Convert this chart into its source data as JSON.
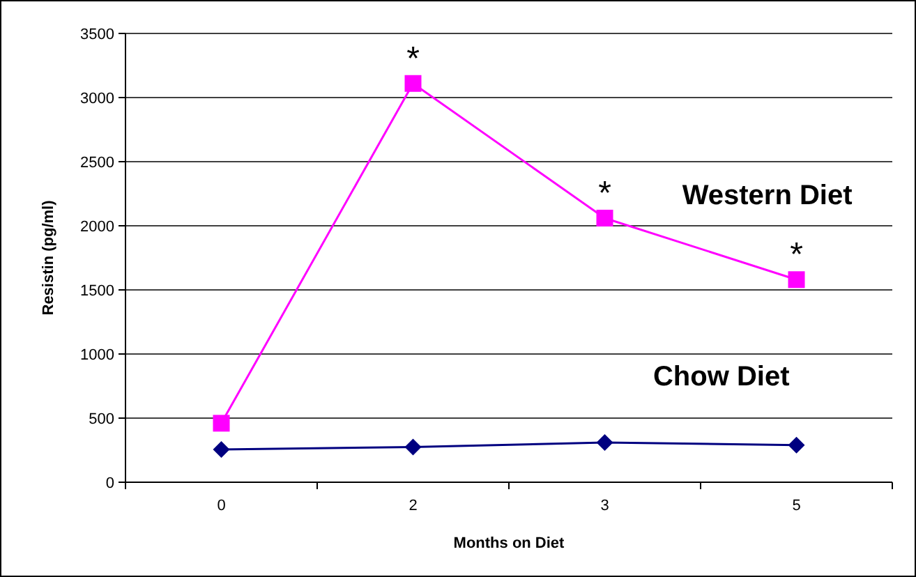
{
  "chart_data": {
    "type": "line",
    "xlabel": "Months on Diet",
    "ylabel": "Resistin (pg/ml)",
    "categories": [
      "0",
      "2",
      "3",
      "5"
    ],
    "series": [
      {
        "name": "Western Diet",
        "color": "#ff00ff",
        "marker": "square",
        "values": [
          460,
          3110,
          2060,
          1580
        ]
      },
      {
        "name": "Chow Diet",
        "color": "#000080",
        "marker": "diamond",
        "values": [
          255,
          275,
          310,
          290
        ]
      }
    ],
    "ylim": [
      0,
      3500
    ],
    "yticks": [
      0,
      500,
      1000,
      1500,
      2000,
      2500,
      3000,
      3500
    ],
    "grid": "y",
    "line_style": "solid",
    "annotations": [
      {
        "text": "*",
        "x": "2",
        "y": 3110
      },
      {
        "text": "*",
        "x": "3",
        "y": 2060
      },
      {
        "text": "*",
        "x": "5",
        "y": 1580
      }
    ]
  }
}
